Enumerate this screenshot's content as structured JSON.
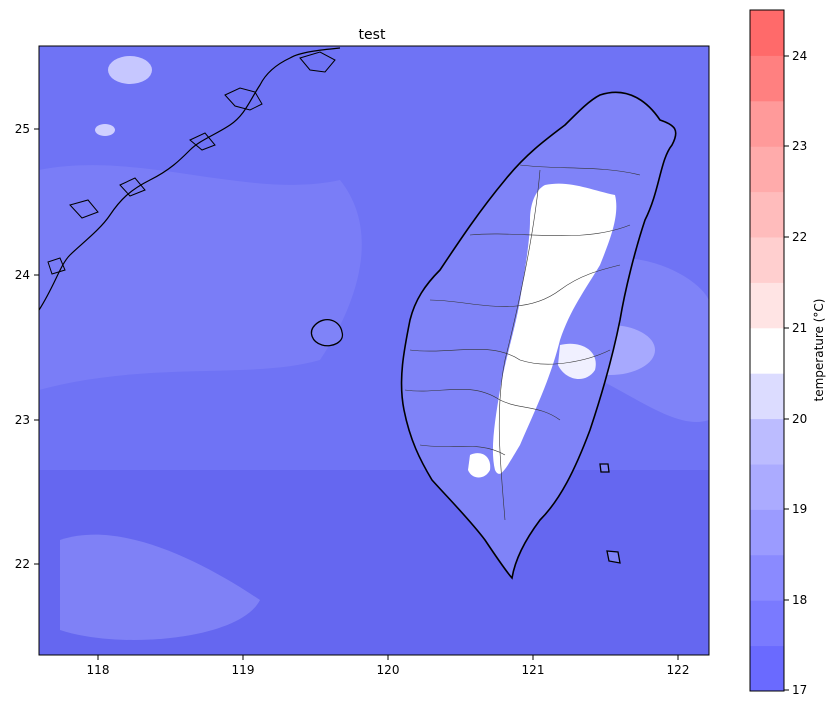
{
  "title": "test",
  "x_ticks": [
    "118",
    "119",
    "120",
    "121",
    "122"
  ],
  "y_ticks": [
    "22",
    "23",
    "24",
    "25"
  ],
  "colorbar": {
    "label": "temperature (°C)",
    "ticks": [
      "17",
      "18",
      "19",
      "20",
      "21",
      "22",
      "23",
      "24"
    ],
    "levels": [
      {
        "from": 17.0,
        "to": 17.5,
        "color": "#6a6aff"
      },
      {
        "from": 17.5,
        "to": 18.0,
        "color": "#7a7aff"
      },
      {
        "from": 18.0,
        "to": 18.5,
        "color": "#8a8aff"
      },
      {
        "from": 18.5,
        "to": 19.0,
        "color": "#9b9bff"
      },
      {
        "from": 19.0,
        "to": 19.5,
        "color": "#ababff"
      },
      {
        "from": 19.5,
        "to": 20.0,
        "color": "#bcbcff"
      },
      {
        "from": 20.0,
        "to": 20.5,
        "color": "#dcdcff"
      },
      {
        "from": 20.5,
        "to": 21.0,
        "color": "#ffffff"
      },
      {
        "from": 21.0,
        "to": 21.5,
        "color": "#ffe4e4"
      },
      {
        "from": 21.5,
        "to": 22.0,
        "color": "#ffcfcf"
      },
      {
        "from": 22.0,
        "to": 22.5,
        "color": "#ffbcbc"
      },
      {
        "from": 22.5,
        "to": 23.0,
        "color": "#ffabab"
      },
      {
        "from": 23.0,
        "to": 23.5,
        "color": "#ff9a9a"
      },
      {
        "from": 23.5,
        "to": 24.0,
        "color": "#ff8080"
      },
      {
        "from": 24.0,
        "to": 24.5,
        "color": "#ff6a6a"
      }
    ]
  },
  "map": {
    "lon_range": [
      117.6,
      122.2
    ],
    "lat_range": [
      21.35,
      25.55
    ],
    "sea_color": "#6f73f5",
    "mountain_color": "#ffffff"
  }
}
